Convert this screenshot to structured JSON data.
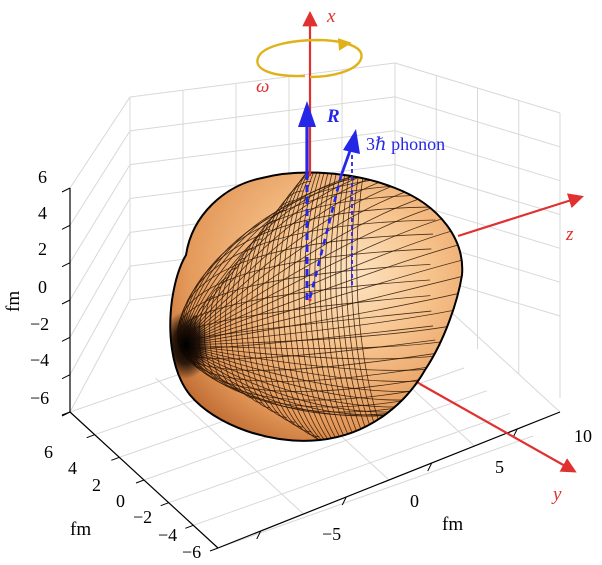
{
  "colors": {
    "axis_red": "#e03030",
    "vector_blue": "#2626e6",
    "rotation_yellow": "#e0b21a",
    "surface_light": "#f7c48e",
    "surface_dark": "#b8622a",
    "grid": "#d8d8d8"
  },
  "axes": {
    "x_label": "x",
    "y_label": "y",
    "z_label": "z"
  },
  "annotations": {
    "omega": "ω",
    "R": "R",
    "phonon": "3ℏ phonon"
  },
  "vertical_axis": {
    "title": "fm",
    "ticks": [
      "6",
      "4",
      "2",
      "0",
      "−2",
      "−4",
      "−6"
    ]
  },
  "left_floor_axis": {
    "title": "fm",
    "ticks": [
      "6",
      "4",
      "2",
      "0",
      "−2",
      "−4",
      "−6"
    ]
  },
  "right_floor_axis": {
    "title": "fm",
    "ticks": [
      "−5",
      "0",
      "5",
      "10"
    ]
  },
  "icons": {
    "rotation": "curved-arrow-icon"
  }
}
